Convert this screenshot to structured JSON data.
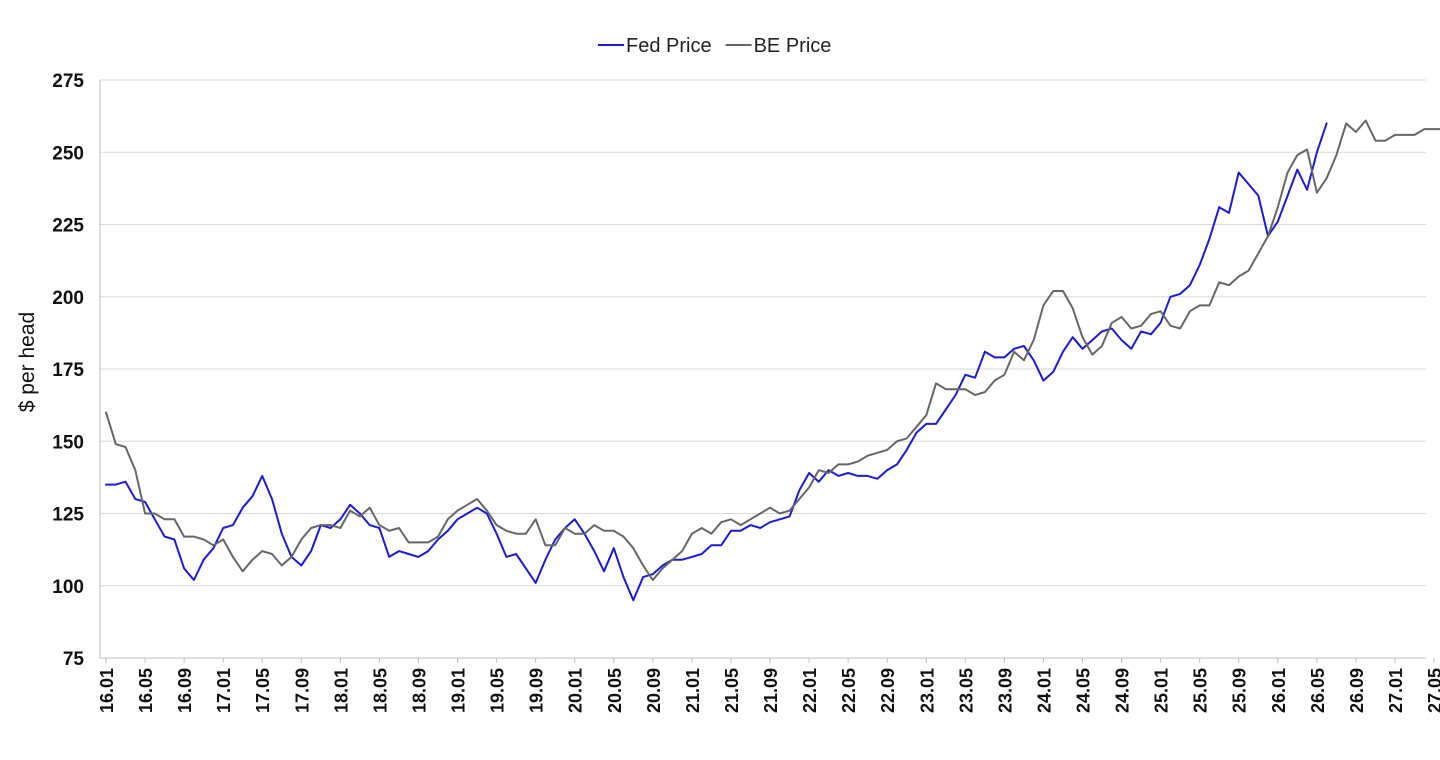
{
  "chart_data": {
    "type": "line",
    "ylabel": "$ per head",
    "xlabel": "",
    "title": "",
    "ylim": [
      75,
      275
    ],
    "yticks": [
      75,
      100,
      125,
      150,
      175,
      200,
      225,
      250,
      275
    ],
    "grid": "horizontal",
    "legend_position": "top-center",
    "x_tick_labels": [
      "16.01",
      "16.05",
      "16.09",
      "17.01",
      "17.05",
      "17.09",
      "18.01",
      "18.05",
      "18.09",
      "19.01",
      "19.05",
      "19.09",
      "20.01",
      "20.05",
      "20.09",
      "21.01",
      "21.05",
      "21.09",
      "22.01",
      "22.05",
      "22.09",
      "23.01",
      "23.05",
      "23.09",
      "24.01",
      "24.05",
      "24.09",
      "25.01",
      "25.05",
      "25.09",
      "26.01",
      "26.05",
      "26.09",
      "27.01",
      "27.05"
    ],
    "series": [
      {
        "name": "Fed Price",
        "color": "#1a1adb",
        "start": "16.01",
        "values": [
          135,
          135,
          136,
          130,
          129,
          123,
          117,
          116,
          106,
          102,
          109,
          113,
          120,
          121,
          127,
          131,
          138,
          130,
          118,
          110,
          107,
          112,
          121,
          120,
          123,
          128,
          125,
          121,
          120,
          110,
          112,
          111,
          110,
          112,
          116,
          119,
          123,
          125,
          127,
          125,
          118,
          110,
          111,
          106,
          101,
          109,
          116,
          120,
          123,
          118,
          112,
          105,
          113,
          103,
          95,
          103,
          104,
          107,
          109,
          109,
          110,
          111,
          114,
          114,
          119,
          119,
          121,
          120,
          122,
          123,
          124,
          133,
          139,
          136,
          140,
          138,
          139,
          138,
          138,
          137,
          140,
          142,
          147,
          153,
          156,
          156,
          161,
          166,
          173,
          172,
          181,
          179,
          179,
          182,
          183,
          178,
          171,
          174,
          181,
          186,
          182,
          185,
          188,
          189,
          185,
          182,
          188,
          187,
          191,
          200,
          201,
          204,
          211,
          220,
          231,
          229,
          243,
          239,
          235,
          221,
          226,
          235,
          244,
          237,
          250,
          260
        ]
      },
      {
        "name": "BE Price",
        "color": "#666666",
        "start": "16.01",
        "values": [
          160,
          149,
          148,
          140,
          125,
          125,
          123,
          123,
          117,
          117,
          116,
          114,
          116,
          110,
          105,
          109,
          112,
          111,
          107,
          110,
          116,
          120,
          121,
          121,
          120,
          126,
          124,
          127,
          121,
          119,
          120,
          115,
          115,
          115,
          117,
          123,
          126,
          128,
          130,
          126,
          121,
          119,
          118,
          118,
          123,
          114,
          114,
          120,
          118,
          118,
          121,
          119,
          119,
          117,
          113,
          107,
          102,
          106,
          109,
          112,
          118,
          120,
          118,
          122,
          123,
          121,
          123,
          125,
          127,
          125,
          126,
          130,
          134,
          140,
          139,
          142,
          142,
          143,
          145,
          146,
          147,
          150,
          151,
          155,
          159,
          170,
          168,
          168,
          168,
          166,
          167,
          171,
          173,
          181,
          178,
          185,
          197,
          202,
          202,
          196,
          186,
          180,
          183,
          191,
          193,
          189,
          190,
          194,
          195,
          190,
          189,
          195,
          197,
          197,
          205,
          204,
          207,
          209,
          215,
          221,
          231,
          243,
          249,
          251,
          236,
          241,
          249,
          260,
          257,
          261,
          254,
          254,
          256,
          256,
          256,
          258,
          258,
          258,
          258
        ]
      }
    ]
  }
}
